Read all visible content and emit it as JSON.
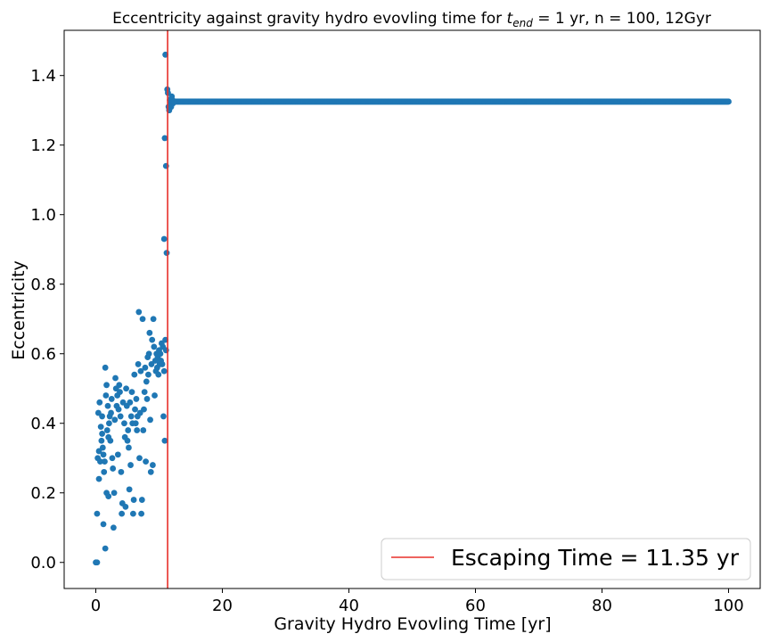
{
  "chart_data": {
    "type": "scatter",
    "title": {
      "prefix": "Eccentricity against gravity hydro evovling time for ",
      "math_main": "t",
      "math_sub": "end",
      "suffix": " = 1 yr, n = 100, 12Gyr"
    },
    "xlabel": "Gravity Hydro Evovling Time [yr]",
    "ylabel": "Eccentricity",
    "xlim": [
      -5,
      105
    ],
    "ylim": [
      -0.075,
      1.53
    ],
    "xticks": [
      0,
      20,
      40,
      60,
      80,
      100
    ],
    "xtick_labels": [
      "0",
      "20",
      "40",
      "60",
      "80",
      "100"
    ],
    "yticks": [
      0.0,
      0.2,
      0.4,
      0.6,
      0.8,
      1.0,
      1.2,
      1.4
    ],
    "ytick_labels": [
      "0.0",
      "0.2",
      "0.4",
      "0.6",
      "0.8",
      "1.0",
      "1.2",
      "1.4"
    ],
    "grid": false,
    "legend_position": "bottom-right",
    "escape_line": {
      "x": 11.35,
      "label": "Escaping Time = 11.35 yr",
      "color": "#e8302a"
    },
    "marker_color": "#1f77b4",
    "plateau": {
      "x_start": 11.9,
      "x_end": 100,
      "step": 0.1,
      "value": 1.325
    },
    "series": [
      {
        "points": [
          [
            0.0,
            0.0
          ],
          [
            0.2,
            0.0
          ],
          [
            0.2,
            0.14
          ],
          [
            0.3,
            0.3
          ],
          [
            0.4,
            0.43
          ],
          [
            0.5,
            0.24
          ],
          [
            0.5,
            0.32
          ],
          [
            0.6,
            0.46
          ],
          [
            0.7,
            0.29
          ],
          [
            0.8,
            0.39
          ],
          [
            0.9,
            0.35
          ],
          [
            1.0,
            0.42
          ],
          [
            1.0,
            0.37
          ],
          [
            1.1,
            0.33
          ],
          [
            1.2,
            0.31
          ],
          [
            1.2,
            0.11
          ],
          [
            1.3,
            0.26
          ],
          [
            1.4,
            0.29
          ],
          [
            1.5,
            0.04
          ],
          [
            1.5,
            0.56
          ],
          [
            1.6,
            0.48
          ],
          [
            1.7,
            0.51
          ],
          [
            1.7,
            0.2
          ],
          [
            1.8,
            0.38
          ],
          [
            1.9,
            0.45
          ],
          [
            2.0,
            0.36
          ],
          [
            2.0,
            0.19
          ],
          [
            2.1,
            0.4
          ],
          [
            2.2,
            0.42
          ],
          [
            2.3,
            0.35
          ],
          [
            2.4,
            0.43
          ],
          [
            2.5,
            0.47
          ],
          [
            2.6,
            0.3
          ],
          [
            2.7,
            0.27
          ],
          [
            2.8,
            0.1
          ],
          [
            2.9,
            0.2
          ],
          [
            3.0,
            0.41
          ],
          [
            3.1,
            0.53
          ],
          [
            3.2,
            0.5
          ],
          [
            3.3,
            0.45
          ],
          [
            3.4,
            0.48
          ],
          [
            3.5,
            0.31
          ],
          [
            3.6,
            0.44
          ],
          [
            3.7,
            0.51
          ],
          [
            3.8,
            0.49
          ],
          [
            3.9,
            0.42
          ],
          [
            4.0,
            0.26
          ],
          [
            4.1,
            0.14
          ],
          [
            4.2,
            0.17
          ],
          [
            4.3,
            0.46
          ],
          [
            4.5,
            0.4
          ],
          [
            4.6,
            0.36
          ],
          [
            4.7,
            0.16
          ],
          [
            4.8,
            0.5
          ],
          [
            4.9,
            0.45
          ],
          [
            5.0,
            0.35
          ],
          [
            5.1,
            0.38
          ],
          [
            5.2,
            0.33
          ],
          [
            5.3,
            0.21
          ],
          [
            5.4,
            0.46
          ],
          [
            5.5,
            0.28
          ],
          [
            5.6,
            0.42
          ],
          [
            5.7,
            0.49
          ],
          [
            5.8,
            0.4
          ],
          [
            5.9,
            0.14
          ],
          [
            6.0,
            0.18
          ],
          [
            6.1,
            0.54
          ],
          [
            6.2,
            0.44
          ],
          [
            6.3,
            0.4
          ],
          [
            6.4,
            0.47
          ],
          [
            6.5,
            0.38
          ],
          [
            6.6,
            0.42
          ],
          [
            6.7,
            0.57
          ],
          [
            6.8,
            0.72
          ],
          [
            6.9,
            0.3
          ],
          [
            7.0,
            0.43
          ],
          [
            7.1,
            0.55
          ],
          [
            7.2,
            0.14
          ],
          [
            7.3,
            0.18
          ],
          [
            7.4,
            0.7
          ],
          [
            7.5,
            0.38
          ],
          [
            7.6,
            0.44
          ],
          [
            7.7,
            0.49
          ],
          [
            7.8,
            0.56
          ],
          [
            7.9,
            0.29
          ],
          [
            8.0,
            0.52
          ],
          [
            8.1,
            0.47
          ],
          [
            8.2,
            0.59
          ],
          [
            8.3,
            0.54
          ],
          [
            8.4,
            0.6
          ],
          [
            8.5,
            0.66
          ],
          [
            8.6,
            0.41
          ],
          [
            8.7,
            0.26
          ],
          [
            8.8,
            0.57
          ],
          [
            8.9,
            0.64
          ],
          [
            9.0,
            0.28
          ],
          [
            9.1,
            0.7
          ],
          [
            9.2,
            0.62
          ],
          [
            9.3,
            0.48
          ],
          [
            9.4,
            0.58
          ],
          [
            9.5,
            0.55
          ],
          [
            9.6,
            0.6
          ],
          [
            9.7,
            0.56
          ],
          [
            9.8,
            0.59
          ],
          [
            9.9,
            0.54
          ],
          [
            10.0,
            0.61
          ],
          [
            10.1,
            0.57
          ],
          [
            10.2,
            0.6
          ],
          [
            10.3,
            0.58
          ],
          [
            10.4,
            0.63
          ],
          [
            10.5,
            0.57
          ],
          [
            10.6,
            0.62
          ],
          [
            10.7,
            0.42
          ],
          [
            10.8,
            0.55
          ],
          [
            10.9,
            0.35
          ],
          [
            11.0,
            0.64
          ],
          [
            11.1,
            0.61
          ],
          [
            10.8,
            0.93
          ],
          [
            10.9,
            1.22
          ],
          [
            11.0,
            1.46
          ],
          [
            11.1,
            1.14
          ],
          [
            11.2,
            0.89
          ],
          [
            11.3,
            1.36
          ],
          [
            11.4,
            1.35
          ],
          [
            11.5,
            1.31
          ],
          [
            11.6,
            1.3
          ],
          [
            11.7,
            1.33
          ],
          [
            11.8,
            1.32
          ],
          [
            11.9,
            1.31
          ],
          [
            12.0,
            1.34
          ],
          [
            12.1,
            1.33
          ],
          [
            12.2,
            1.32
          ]
        ]
      }
    ]
  }
}
